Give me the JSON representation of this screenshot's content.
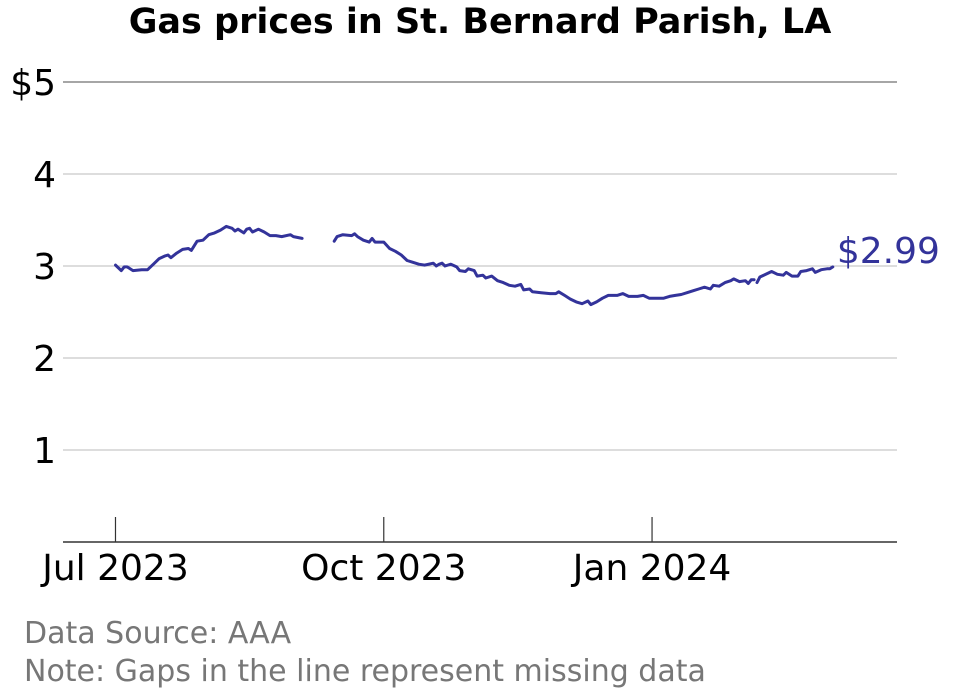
{
  "chart_data": {
    "type": "line",
    "title": "Gas prices in St. Bernard Parish, LA",
    "ylim": [
      0,
      5
    ],
    "y_ticks": [
      {
        "value": 1,
        "label": "1"
      },
      {
        "value": 2,
        "label": "2"
      },
      {
        "value": 3,
        "label": "3"
      },
      {
        "value": 4,
        "label": "4"
      },
      {
        "value": 5,
        "label": "$5"
      }
    ],
    "x_ticks": [
      {
        "date": "2023-07-01",
        "label": "Jul 2023"
      },
      {
        "date": "2023-10-01",
        "label": "Oct 2023"
      },
      {
        "date": "2024-01-01",
        "label": "Jan 2024"
      }
    ],
    "xlim": [
      "2023-06-13",
      "2024-03-25"
    ],
    "grid": true,
    "line_color": "#33339a",
    "end_label": "$2.99",
    "series": [
      {
        "segments": [
          [
            [
              "2023-07-01",
              3.01
            ],
            [
              "2023-07-03",
              2.95
            ],
            [
              "2023-07-04",
              2.99
            ],
            [
              "2023-07-05",
              2.99
            ],
            [
              "2023-07-07",
              2.95
            ],
            [
              "2023-07-10",
              2.96
            ],
            [
              "2023-07-12",
              2.96
            ],
            [
              "2023-07-14",
              3.02
            ],
            [
              "2023-07-16",
              3.08
            ],
            [
              "2023-07-18",
              3.11
            ],
            [
              "2023-07-19",
              3.12
            ],
            [
              "2023-07-20",
              3.09
            ],
            [
              "2023-07-22",
              3.14
            ],
            [
              "2023-07-24",
              3.18
            ],
            [
              "2023-07-26",
              3.19
            ],
            [
              "2023-07-27",
              3.17
            ],
            [
              "2023-07-29",
              3.27
            ],
            [
              "2023-07-31",
              3.28
            ],
            [
              "2023-08-02",
              3.34
            ],
            [
              "2023-08-04",
              3.36
            ],
            [
              "2023-08-06",
              3.39
            ],
            [
              "2023-08-08",
              3.43
            ],
            [
              "2023-08-10",
              3.41
            ],
            [
              "2023-08-11",
              3.38
            ],
            [
              "2023-08-12",
              3.4
            ],
            [
              "2023-08-14",
              3.36
            ],
            [
              "2023-08-15",
              3.4
            ],
            [
              "2023-08-16",
              3.41
            ],
            [
              "2023-08-17",
              3.37
            ],
            [
              "2023-08-19",
              3.4
            ],
            [
              "2023-08-21",
              3.37
            ],
            [
              "2023-08-23",
              3.33
            ],
            [
              "2023-08-25",
              3.33
            ],
            [
              "2023-08-27",
              3.32
            ],
            [
              "2023-08-30",
              3.34
            ],
            [
              "2023-08-31",
              3.32
            ],
            [
              "2023-09-03",
              3.3
            ]
          ],
          [
            [
              "2023-09-14",
              3.27
            ],
            [
              "2023-09-15",
              3.32
            ],
            [
              "2023-09-17",
              3.34
            ],
            [
              "2023-09-20",
              3.33
            ],
            [
              "2023-09-21",
              3.35
            ],
            [
              "2023-09-22",
              3.32
            ],
            [
              "2023-09-24",
              3.28
            ],
            [
              "2023-09-26",
              3.26
            ],
            [
              "2023-09-27",
              3.3
            ],
            [
              "2023-09-28",
              3.26
            ],
            [
              "2023-10-01",
              3.26
            ],
            [
              "2023-10-03",
              3.19
            ],
            [
              "2023-10-05",
              3.16
            ],
            [
              "2023-10-07",
              3.12
            ],
            [
              "2023-10-09",
              3.06
            ],
            [
              "2023-10-11",
              3.04
            ],
            [
              "2023-10-13",
              3.02
            ],
            [
              "2023-10-15",
              3.01
            ],
            [
              "2023-10-18",
              3.03
            ],
            [
              "2023-10-19",
              3.0
            ],
            [
              "2023-10-20",
              3.02
            ],
            [
              "2023-10-21",
              3.03
            ],
            [
              "2023-10-22",
              3.0
            ],
            [
              "2023-10-24",
              3.02
            ],
            [
              "2023-10-26",
              2.99
            ],
            [
              "2023-10-27",
              2.95
            ],
            [
              "2023-10-29",
              2.94
            ],
            [
              "2023-10-30",
              2.97
            ],
            [
              "2023-11-01",
              2.95
            ],
            [
              "2023-11-02",
              2.89
            ],
            [
              "2023-11-04",
              2.9
            ],
            [
              "2023-11-05",
              2.87
            ],
            [
              "2023-11-07",
              2.89
            ],
            [
              "2023-11-09",
              2.84
            ],
            [
              "2023-11-11",
              2.82
            ],
            [
              "2023-11-13",
              2.79
            ],
            [
              "2023-11-15",
              2.78
            ],
            [
              "2023-11-17",
              2.8
            ],
            [
              "2023-11-18",
              2.74
            ],
            [
              "2023-11-20",
              2.75
            ],
            [
              "2023-11-21",
              2.72
            ],
            [
              "2023-11-24",
              2.71
            ],
            [
              "2023-11-27",
              2.7
            ],
            [
              "2023-11-29",
              2.7
            ],
            [
              "2023-11-30",
              2.72
            ],
            [
              "2023-12-02",
              2.68
            ],
            [
              "2023-12-04",
              2.64
            ],
            [
              "2023-12-06",
              2.61
            ],
            [
              "2023-12-08",
              2.59
            ],
            [
              "2023-12-10",
              2.62
            ],
            [
              "2023-12-11",
              2.58
            ],
            [
              "2023-12-13",
              2.61
            ],
            [
              "2023-12-15",
              2.65
            ],
            [
              "2023-12-17",
              2.68
            ],
            [
              "2023-12-20",
              2.68
            ],
            [
              "2023-12-22",
              2.7
            ],
            [
              "2023-12-24",
              2.67
            ],
            [
              "2023-12-27",
              2.67
            ],
            [
              "2023-12-29",
              2.68
            ],
            [
              "2023-12-31",
              2.65
            ],
            [
              "2024-01-03",
              2.65
            ],
            [
              "2024-01-05",
              2.65
            ],
            [
              "2024-01-07",
              2.67
            ],
            [
              "2024-01-09",
              2.68
            ],
            [
              "2024-01-11",
              2.69
            ],
            [
              "2024-01-13",
              2.71
            ],
            [
              "2024-01-15",
              2.73
            ],
            [
              "2024-01-17",
              2.75
            ],
            [
              "2024-01-19",
              2.77
            ],
            [
              "2024-01-21",
              2.75
            ],
            [
              "2024-01-22",
              2.79
            ],
            [
              "2024-01-24",
              2.78
            ],
            [
              "2024-01-26",
              2.82
            ],
            [
              "2024-01-28",
              2.84
            ],
            [
              "2024-01-29",
              2.86
            ],
            [
              "2024-01-31",
              2.83
            ],
            [
              "2024-02-02",
              2.84
            ],
            [
              "2024-02-03",
              2.81
            ],
            [
              "2024-02-04",
              2.85
            ],
            [
              "2024-02-05",
              2.85
            ]
          ],
          [
            [
              "2024-02-06",
              2.82
            ],
            [
              "2024-02-07",
              2.88
            ],
            [
              "2024-02-09",
              2.91
            ],
            [
              "2024-02-11",
              2.94
            ],
            [
              "2024-02-13",
              2.91
            ],
            [
              "2024-02-15",
              2.9
            ],
            [
              "2024-02-16",
              2.93
            ],
            [
              "2024-02-18",
              2.89
            ],
            [
              "2024-02-20",
              2.89
            ],
            [
              "2024-02-21",
              2.94
            ],
            [
              "2024-02-23",
              2.95
            ],
            [
              "2024-02-25",
              2.97
            ],
            [
              "2024-02-26",
              2.93
            ],
            [
              "2024-02-28",
              2.96
            ],
            [
              "2024-03-01",
              2.97
            ],
            [
              "2024-03-02",
              2.97
            ],
            [
              "2024-03-03",
              2.99
            ]
          ]
        ]
      }
    ]
  },
  "footer": {
    "source": "Data Source: AAA",
    "note": "Note: Gaps in the line represent missing data"
  }
}
